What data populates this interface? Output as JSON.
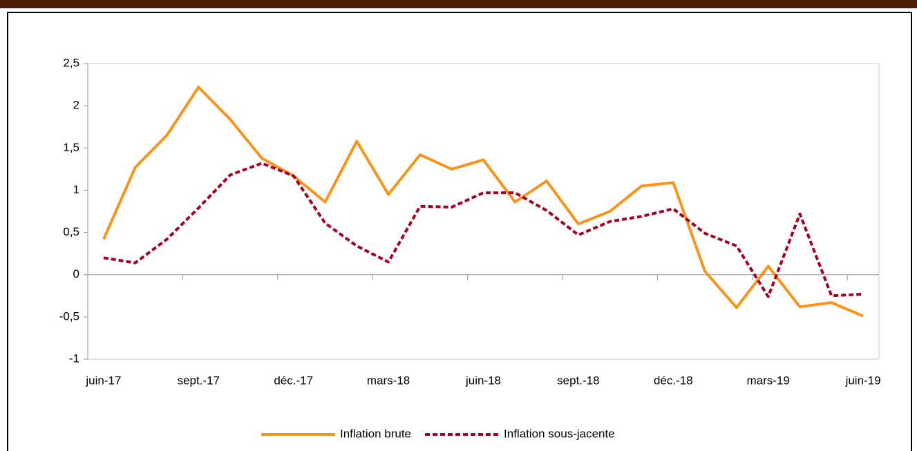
{
  "chart_data": {
    "type": "line",
    "categories": [
      "juin-17",
      null,
      null,
      "sept.-17",
      null,
      null,
      "déc.-17",
      null,
      null,
      "mars-18",
      null,
      null,
      "juin-18",
      null,
      null,
      "sept.-18",
      null,
      null,
      "déc.-18",
      null,
      null,
      "mars-19",
      null,
      null,
      "juin-19"
    ],
    "series": [
      {
        "name": "Inflation brute",
        "color": "#f7941d",
        "dashed": false,
        "values": [
          0.42,
          1.27,
          1.65,
          2.22,
          1.84,
          1.38,
          1.17,
          0.86,
          1.58,
          0.95,
          1.42,
          1.25,
          1.36,
          0.86,
          1.11,
          0.6,
          0.75,
          1.05,
          1.09,
          0.04,
          -0.39,
          0.1,
          -0.38,
          -0.33,
          -0.49
        ]
      },
      {
        "name": "Inflation sous-jacente",
        "color": "#a50021",
        "dashed": true,
        "values": [
          0.2,
          0.14,
          0.42,
          0.79,
          1.18,
          1.32,
          1.17,
          0.61,
          0.34,
          0.15,
          0.81,
          0.8,
          0.97,
          0.97,
          0.76,
          0.47,
          0.63,
          0.69,
          0.78,
          0.49,
          0.34,
          -0.26,
          0.72,
          -0.25,
          -0.23
        ]
      }
    ],
    "ylim": [
      -1,
      2.5
    ],
    "yticks": [
      -1,
      {
        "value": -0.5,
        "label": "-0,5"
      },
      0,
      {
        "value": 0.5,
        "label": "0,5"
      },
      1,
      {
        "value": 1.5,
        "label": "1,5"
      },
      2,
      {
        "value": 2.5,
        "label": "2,5"
      }
    ],
    "grid": false,
    "legend": "bottom"
  }
}
